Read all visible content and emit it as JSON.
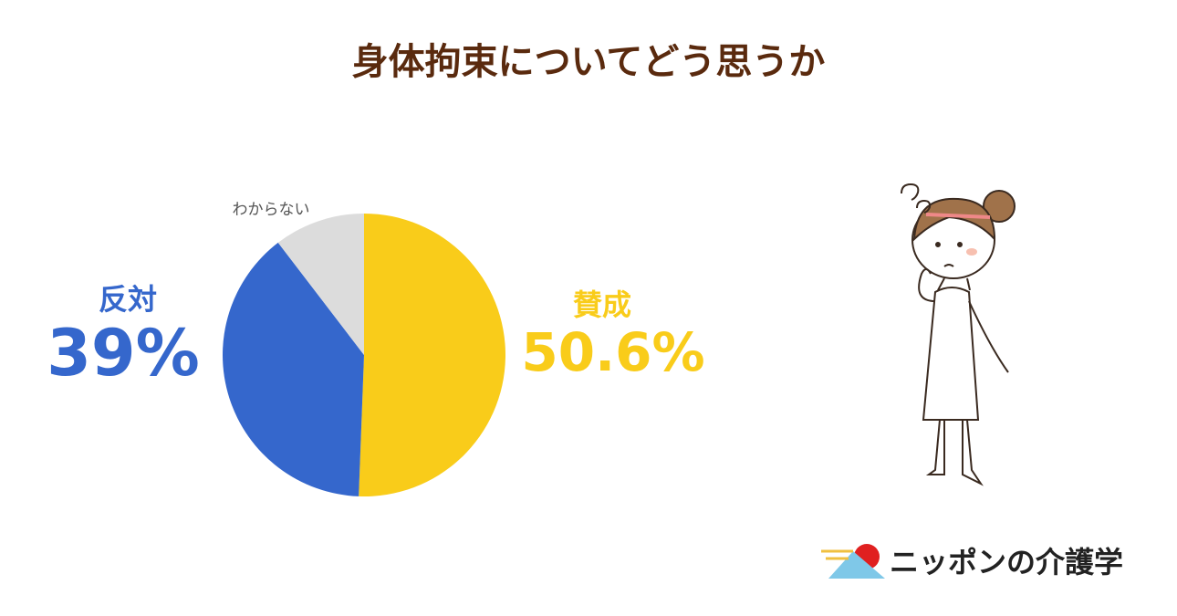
{
  "chart_data": {
    "type": "pie",
    "title": "身体拘束についてどう思うか",
    "categories": [
      "賛成",
      "反対",
      "わからない"
    ],
    "values": [
      50.6,
      39,
      10.4
    ],
    "value_labels": [
      "50.6%",
      "39%",
      null
    ],
    "colors": [
      "#f9cc1a",
      "#3567cc",
      "#dcdcdc"
    ]
  },
  "logo": "ニッポンの介護学"
}
